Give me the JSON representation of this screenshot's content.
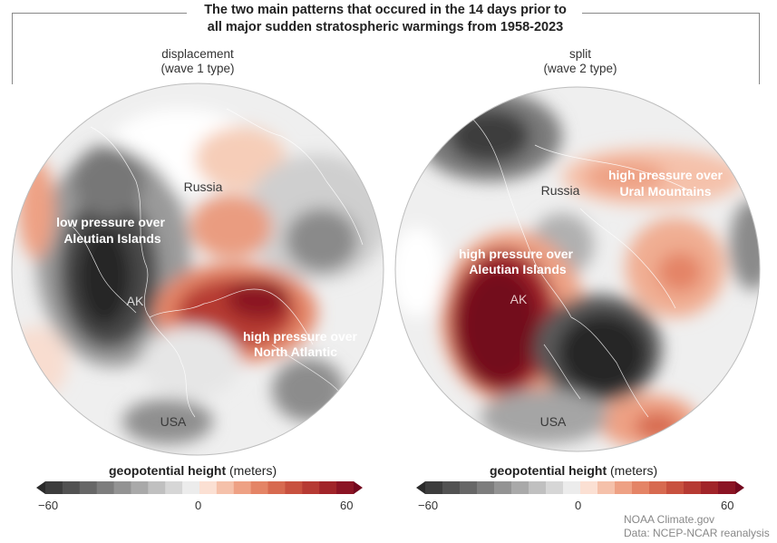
{
  "title_line1": "The two main patterns that occured in the 14 days prior to",
  "title_line2": "all major sudden stratospheric warmings from 1958-2023",
  "panels": [
    {
      "name_line1": "displacement",
      "name_line2": "(wave 1 type)",
      "labels": {
        "russia": "Russia",
        "low_line1": "low pressure over",
        "low_line2": "Aleutian Islands",
        "ak": "AK",
        "high_line1": "high pressure over",
        "high_line2": "North Atlantic",
        "usa": "USA"
      }
    },
    {
      "name_line1": "split",
      "name_line2": "(wave 2 type)",
      "labels": {
        "russia": "Russia",
        "ural_line1": "high pressure over",
        "ural_line2": "Ural Mountains",
        "aleut_line1": "high pressure over",
        "aleut_line2": "Aleutian Islands",
        "ak": "AK",
        "usa": "USA"
      }
    }
  ],
  "colorbar": {
    "title_bold": "geopotential height",
    "title_unit": "(meters)",
    "ticks": [
      "−60",
      "0",
      "60"
    ],
    "colors": [
      "#2a2a2a",
      "#3d3d3d",
      "#525252",
      "#676767",
      "#7d7d7d",
      "#939393",
      "#a9a9a9",
      "#c0c0c0",
      "#d6d6d6",
      "#ececec",
      "#fbe0d3",
      "#f5c1aa",
      "#eea184",
      "#e48466",
      "#d76a50",
      "#c8513f",
      "#b63a33",
      "#a12429",
      "#8b1424",
      "#73081e"
    ]
  },
  "credit_line1": "NOAA Climate.gov",
  "credit_line2": "Data: NCEP-NCAR reanalysis",
  "colors": {
    "low_dark": "#262626",
    "high_dark": "#73081e",
    "label_dark": "#3a3a3a",
    "label_light": "#ffffff"
  }
}
